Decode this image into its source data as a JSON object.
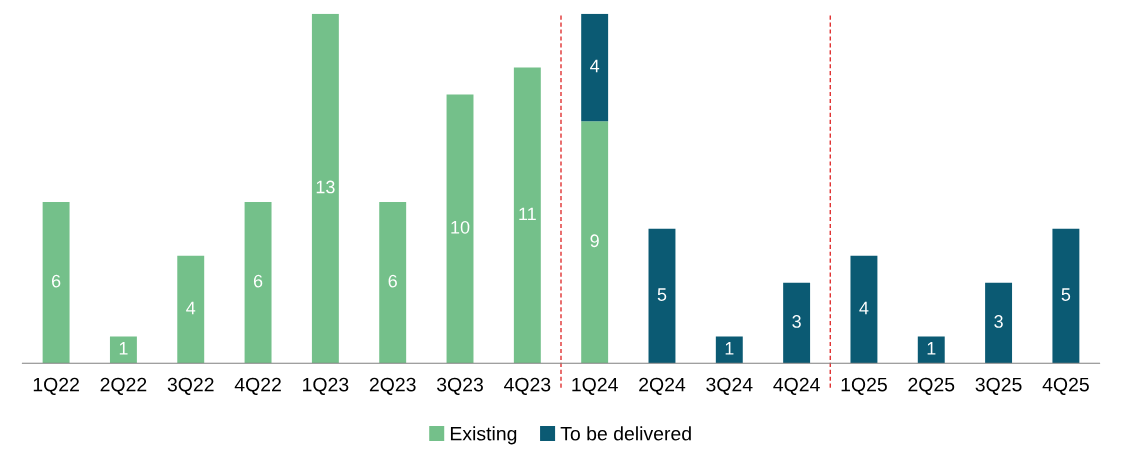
{
  "chart_data": {
    "type": "bar",
    "stacked": true,
    "data_labels": true,
    "legend": "bottom",
    "grid": false,
    "categories": [
      "1Q22",
      "2Q22",
      "3Q22",
      "4Q22",
      "1Q23",
      "2Q23",
      "3Q23",
      "4Q23",
      "1Q24",
      "2Q24",
      "3Q24",
      "4Q24",
      "1Q25",
      "2Q25",
      "3Q25",
      "4Q25"
    ],
    "series": [
      {
        "name": "Existing",
        "color": "#74c08a",
        "values": [
          6,
          1,
          4,
          6,
          13,
          6,
          10,
          11,
          9,
          null,
          null,
          null,
          null,
          null,
          null,
          null
        ]
      },
      {
        "name": "To be delivered",
        "color": "#0b5a73",
        "values": [
          null,
          null,
          null,
          null,
          null,
          null,
          null,
          null,
          4,
          5,
          1,
          3,
          4,
          1,
          3,
          5
        ]
      }
    ]
  }
}
